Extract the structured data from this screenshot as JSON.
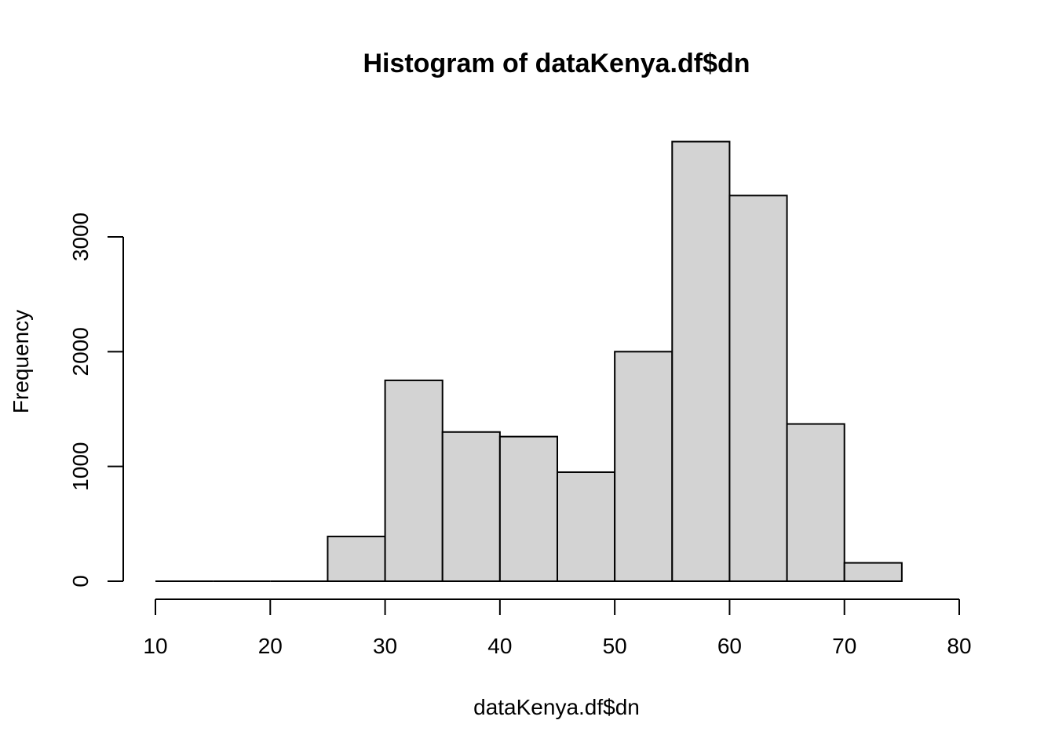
{
  "chart_data": {
    "type": "bar",
    "title": "Histogram of dataKenya.df$dn",
    "xlabel": "dataKenya.df$dn",
    "ylabel": "Frequency",
    "bins": [
      {
        "from": 10,
        "to": 15,
        "count": 0
      },
      {
        "from": 15,
        "to": 20,
        "count": 0
      },
      {
        "from": 20,
        "to": 25,
        "count": 0
      },
      {
        "from": 25,
        "to": 30,
        "count": 390
      },
      {
        "from": 30,
        "to": 35,
        "count": 1750
      },
      {
        "from": 35,
        "to": 40,
        "count": 1300
      },
      {
        "from": 40,
        "to": 45,
        "count": 1260
      },
      {
        "from": 45,
        "to": 50,
        "count": 950
      },
      {
        "from": 50,
        "to": 55,
        "count": 2000
      },
      {
        "from": 55,
        "to": 60,
        "count": 3830
      },
      {
        "from": 60,
        "to": 65,
        "count": 3360
      },
      {
        "from": 65,
        "to": 70,
        "count": 1370
      },
      {
        "from": 70,
        "to": 75,
        "count": 160
      }
    ],
    "xlim": [
      10,
      80
    ],
    "ylim": [
      0,
      3830
    ],
    "x_ticks": [
      10,
      20,
      30,
      40,
      50,
      60,
      70,
      80
    ],
    "x_tick_labels": [
      "10",
      "20",
      "30",
      "40",
      "50",
      "60",
      "70",
      "80"
    ],
    "y_ticks": [
      0,
      1000,
      2000,
      3000
    ],
    "y_tick_labels": [
      "0",
      "1000",
      "2000",
      "3000"
    ],
    "bar_color": "#d3d3d3",
    "grid": false
  }
}
